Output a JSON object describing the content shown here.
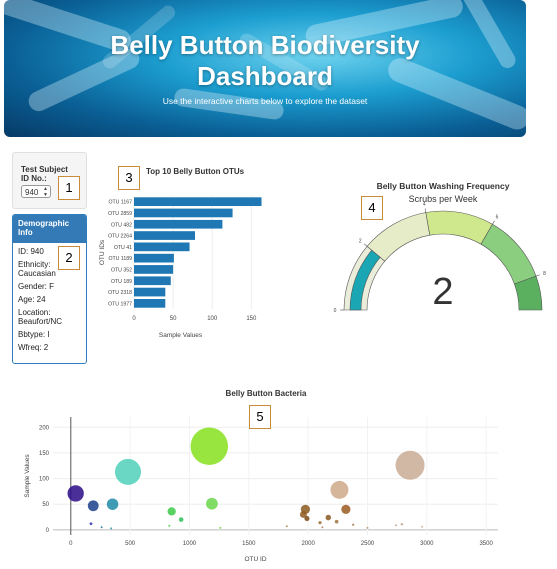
{
  "banner": {
    "title_line1": "Belly Button Biodiversity",
    "title_line2": "Dashboard",
    "subtitle": "Use the interactive charts below to explore the dataset"
  },
  "selector": {
    "label_line1": "Test Subject",
    "label_line2": "ID No.:",
    "value": "940"
  },
  "demographics": {
    "title_line1": "Demographic",
    "title_line2": "Info",
    "rows": [
      "ID: 940",
      "Ethnicity: Caucasian",
      "Gender: F",
      "Age: 24",
      "Location: Beaufort/NC",
      "Bbtype: I",
      "Wfreq: 2"
    ]
  },
  "callouts": [
    "1",
    "2",
    "3",
    "4",
    "5"
  ],
  "colors": {
    "bar": "#1f77b4",
    "gauge_needle": "#1aa7b3",
    "gauge_text": "#333333"
  },
  "chart_data": [
    {
      "id": "bar",
      "type": "bar",
      "orientation": "horizontal",
      "title": "Top 10 Belly Button OTUs",
      "xlabel": "Sample Values",
      "ylabel": "OTU IDs",
      "categories": [
        "OTU 1167",
        "OTU 2859",
        "OTU 482",
        "OTU 2264",
        "OTU 41",
        "OTU 1189",
        "OTU 352",
        "OTU 189",
        "OTU 2318",
        "OTU 1977"
      ],
      "values": [
        163,
        126,
        113,
        78,
        71,
        51,
        50,
        47,
        40,
        40
      ],
      "xticks": [
        0,
        50,
        100,
        150
      ],
      "xlim": [
        0,
        170
      ]
    },
    {
      "id": "gauge",
      "type": "gauge",
      "title": "Belly Button Washing Frequency",
      "subtitle": "Scrubs per Week",
      "value": 2,
      "display_value": "2",
      "range": [
        0,
        9
      ],
      "ticks": [
        "0",
        "2",
        "4",
        "6",
        "8"
      ],
      "tick_values": [
        0,
        2,
        4,
        6,
        8
      ],
      "steps": [
        {
          "range": [
            0,
            2
          ],
          "color": "#e9edd9"
        },
        {
          "range": [
            2,
            4
          ],
          "color": "#e6ecc7"
        },
        {
          "range": [
            4,
            6
          ],
          "color": "#cfe88d"
        },
        {
          "range": [
            6,
            8
          ],
          "color": "#8cce7f"
        },
        {
          "range": [
            8,
            9
          ],
          "color": "#5bb05f"
        }
      ]
    },
    {
      "id": "bubble",
      "type": "scatter",
      "title": "Belly Button Bacteria",
      "xlabel": "OTU ID",
      "ylabel": "Sample Values",
      "xlim": [
        -150,
        3600
      ],
      "ylim": [
        -10,
        220
      ],
      "xticks": [
        0,
        500,
        1000,
        1500,
        2000,
        2500,
        3000,
        3500
      ],
      "yticks": [
        0,
        50,
        100,
        150,
        200
      ],
      "points": [
        {
          "x": 41,
          "y": 71,
          "color": "#2a0a86"
        },
        {
          "x": 189,
          "y": 47,
          "color": "#1a3f8a"
        },
        {
          "x": 352,
          "y": 50,
          "color": "#1f8aa8"
        },
        {
          "x": 482,
          "y": 113,
          "color": "#4fd0b8"
        },
        {
          "x": 1167,
          "y": 163,
          "color": "#86e01f"
        },
        {
          "x": 1189,
          "y": 51,
          "color": "#6ad64a"
        },
        {
          "x": 2264,
          "y": 78,
          "color": "#cfa98a"
        },
        {
          "x": 2318,
          "y": 40,
          "color": "#9a5a22"
        },
        {
          "x": 2859,
          "y": 126,
          "color": "#c9ab95"
        },
        {
          "x": 1977,
          "y": 40,
          "color": "#8b5a1e"
        },
        {
          "x": 170,
          "y": 12,
          "color": "#2b2fb0"
        },
        {
          "x": 850,
          "y": 36,
          "color": "#3cc948"
        },
        {
          "x": 930,
          "y": 20,
          "color": "#2ec25a"
        },
        {
          "x": 830,
          "y": 8,
          "color": "#4ad04a"
        },
        {
          "x": 1960,
          "y": 30,
          "color": "#8f5a20"
        },
        {
          "x": 1990,
          "y": 22,
          "color": "#7a4a18"
        },
        {
          "x": 2170,
          "y": 24,
          "color": "#8a5a22"
        },
        {
          "x": 2100,
          "y": 14,
          "color": "#9a6a30"
        },
        {
          "x": 2240,
          "y": 16,
          "color": "#a07040"
        },
        {
          "x": 2380,
          "y": 10,
          "color": "#a57a50"
        },
        {
          "x": 2120,
          "y": 5,
          "color": "#b08060"
        },
        {
          "x": 1820,
          "y": 7,
          "color": "#b08050"
        },
        {
          "x": 2740,
          "y": 9,
          "color": "#bfa58f"
        },
        {
          "x": 2790,
          "y": 11,
          "color": "#bfa58f"
        },
        {
          "x": 2960,
          "y": 6,
          "color": "#c4ad99"
        },
        {
          "x": 1260,
          "y": 4,
          "color": "#7ad040"
        },
        {
          "x": 260,
          "y": 5,
          "color": "#2277a0"
        },
        {
          "x": 340,
          "y": 3,
          "color": "#2b8fb0"
        },
        {
          "x": 2500,
          "y": 4,
          "color": "#b89070"
        }
      ]
    }
  ]
}
